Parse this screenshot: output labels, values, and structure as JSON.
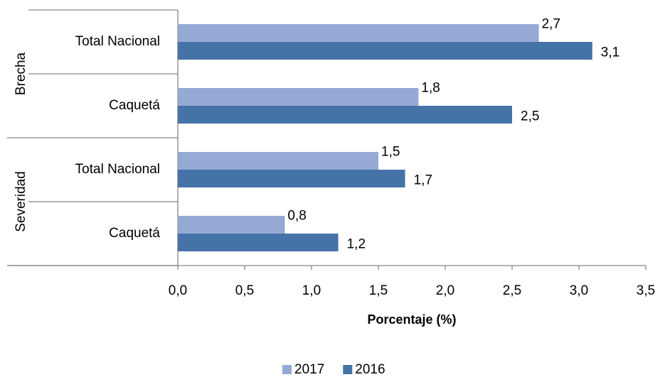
{
  "chart_data": {
    "type": "hbar",
    "groups": [
      {
        "name": "Brecha",
        "categories": [
          "Total Nacional",
          "Caquetá"
        ]
      },
      {
        "name": "Severidad",
        "categories": [
          "Total Nacional",
          "Caquetá"
        ]
      }
    ],
    "series": [
      {
        "name": "2017",
        "color": "#95a9d4",
        "values": [
          2.7,
          1.8,
          1.5,
          0.8
        ],
        "value_labels": [
          "2,7",
          "1,8",
          "1,5",
          "0,8"
        ]
      },
      {
        "name": "2016",
        "color": "#4572a7",
        "values": [
          3.1,
          2.5,
          1.7,
          1.2
        ],
        "value_labels": [
          "3,1",
          "2,5",
          "1,7",
          "1,2"
        ]
      }
    ],
    "xlabel": "Porcentaje (%)",
    "xlim": [
      0,
      3.5
    ],
    "xticks": [
      {
        "value": 0,
        "label": "0,0"
      },
      {
        "value": 0.5,
        "label": "0,5"
      },
      {
        "value": 1,
        "label": "1,0"
      },
      {
        "value": 1.5,
        "label": "1,5"
      },
      {
        "value": 2,
        "label": "2,0"
      },
      {
        "value": 2.5,
        "label": "2,5"
      },
      {
        "value": 3,
        "label": "3,0"
      },
      {
        "value": 3.5,
        "label": "3,5"
      }
    ],
    "legend": "bottom"
  }
}
